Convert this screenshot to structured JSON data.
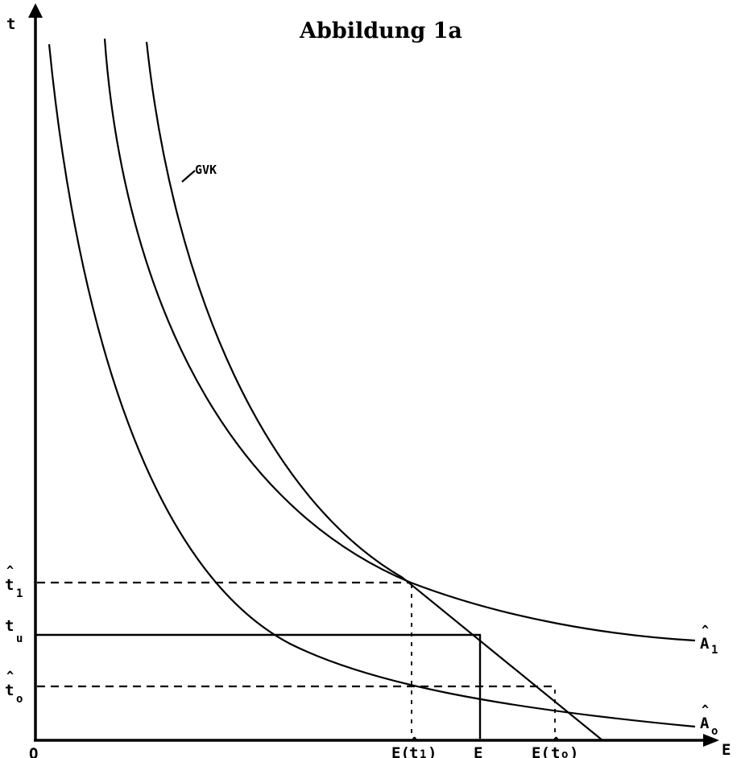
{
  "title": "Abbildung 1a",
  "axes": {
    "y_label": "t",
    "x_label": "E",
    "origin_label": "O"
  },
  "curve_labels": {
    "gvk": "GVK",
    "a1_base": "A",
    "a1_sub": "1",
    "a0_base": "A",
    "a0_sub": "o"
  },
  "y_ticks": {
    "t1_base": "t",
    "t1_sub": "1",
    "tu_base": "t",
    "tu_sub": "u",
    "t0_base": "t",
    "t0_sub": "o"
  },
  "x_ticks": {
    "et1_pre": "E(",
    "et1_base": "t",
    "et1_sub": "1",
    "et1_post": ")",
    "ebar": "E",
    "et0_pre": "E(",
    "et0_base": "t",
    "et0_sub": "o",
    "et0_post": ")"
  },
  "hat_glyph": "^",
  "bar_glyph": "‾"
}
